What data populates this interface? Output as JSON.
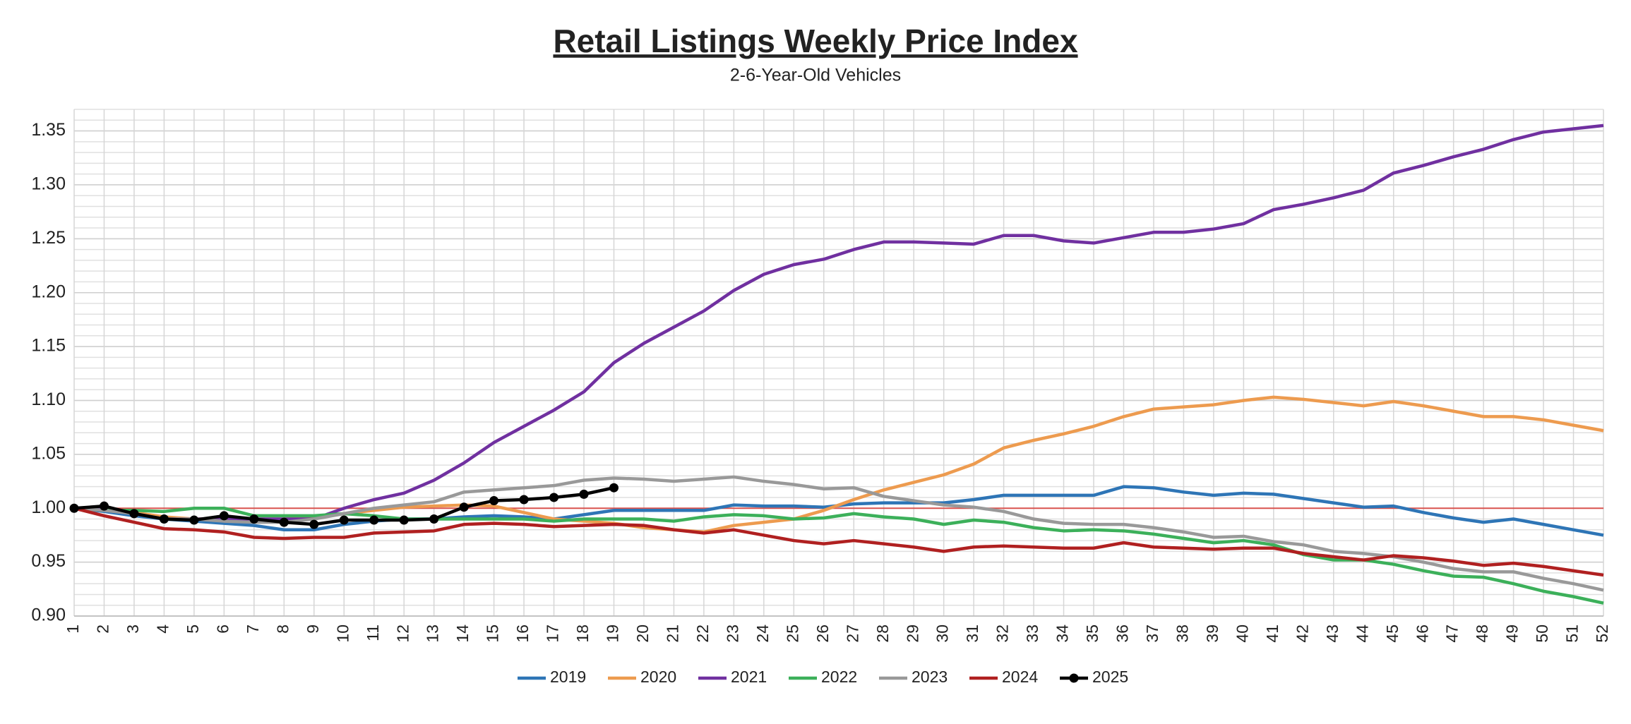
{
  "chart_data": {
    "type": "line",
    "title": "Retail Listings Weekly Price Index",
    "subtitle": "2-6-Year-Old Vehicles",
    "x": [
      1,
      2,
      3,
      4,
      5,
      6,
      7,
      8,
      9,
      10,
      11,
      12,
      13,
      14,
      15,
      16,
      17,
      18,
      19,
      20,
      21,
      22,
      23,
      24,
      25,
      26,
      27,
      28,
      29,
      30,
      31,
      32,
      33,
      34,
      35,
      36,
      37,
      38,
      39,
      40,
      41,
      42,
      43,
      44,
      45,
      46,
      47,
      48,
      49,
      50,
      51,
      52
    ],
    "xlim": [
      1,
      52
    ],
    "xticks": [
      1,
      2,
      3,
      4,
      5,
      6,
      7,
      8,
      9,
      10,
      11,
      12,
      13,
      14,
      15,
      16,
      17,
      18,
      19,
      20,
      21,
      22,
      23,
      24,
      25,
      26,
      27,
      28,
      29,
      30,
      31,
      32,
      33,
      34,
      35,
      36,
      37,
      38,
      39,
      40,
      41,
      42,
      43,
      44,
      45,
      46,
      47,
      48,
      49,
      50,
      51,
      52
    ],
    "ylim": [
      0.9,
      1.37
    ],
    "yticks": [
      {
        "value": 0.9,
        "label": "0.90"
      },
      0.95,
      {
        "value": 1,
        "label": "1.00"
      },
      1.05,
      {
        "value": 1.1,
        "label": "1.10"
      },
      1.15,
      {
        "value": 1.2,
        "label": "1.20"
      },
      1.25,
      {
        "value": 1.3,
        "label": "1.30"
      },
      1.35
    ],
    "grid": true,
    "minor_grid_step": 0.01,
    "reference_line": {
      "value": 1,
      "color": "#d9534f"
    },
    "legend": "bottom",
    "series": [
      {
        "name": "2019",
        "color": "#2e75b6",
        "values": [
          1.0,
          0.997,
          0.993,
          0.99,
          0.988,
          0.986,
          0.984,
          0.98,
          0.98,
          0.985,
          0.988,
          0.99,
          0.99,
          0.992,
          0.993,
          0.992,
          0.99,
          0.994,
          0.998,
          0.998,
          0.998,
          0.998,
          1.003,
          1.002,
          1.002,
          1.001,
          1.004,
          1.005,
          1.005,
          1.005,
          1.008,
          1.012,
          1.012,
          1.012,
          1.012,
          1.02,
          1.019,
          1.015,
          1.012,
          1.014,
          1.013,
          1.009,
          1.005,
          1.001,
          1.002,
          0.996,
          0.991,
          0.987,
          0.99,
          0.985,
          0.98,
          0.975
        ]
      },
      {
        "name": "2020",
        "color": "#ed9b4f",
        "values": [
          1.0,
          0.998,
          0.996,
          0.992,
          0.99,
          0.99,
          0.99,
          0.99,
          0.992,
          0.995,
          0.998,
          1.001,
          1.002,
          1.003,
          1.002,
          0.996,
          0.99,
          0.988,
          0.986,
          0.982,
          0.98,
          0.978,
          0.984,
          0.987,
          0.99,
          0.998,
          1.008,
          1.017,
          1.024,
          1.031,
          1.041,
          1.056,
          1.063,
          1.069,
          1.076,
          1.085,
          1.092,
          1.094,
          1.096,
          1.1,
          1.103,
          1.101,
          1.098,
          1.095,
          1.099,
          1.095,
          1.09,
          1.085,
          1.085,
          1.082,
          1.077,
          1.072
        ]
      },
      {
        "name": "2021",
        "color": "#7030a0",
        "values": [
          1.0,
          1.0,
          0.995,
          0.99,
          0.99,
          0.99,
          0.99,
          0.99,
          0.99,
          1.0,
          1.008,
          1.014,
          1.026,
          1.042,
          1.061,
          1.076,
          1.091,
          1.108,
          1.135,
          1.153,
          1.168,
          1.183,
          1.202,
          1.217,
          1.226,
          1.231,
          1.24,
          1.247,
          1.247,
          1.246,
          1.245,
          1.253,
          1.253,
          1.248,
          1.246,
          1.251,
          1.256,
          1.256,
          1.259,
          1.264,
          1.277,
          1.282,
          1.288,
          1.295,
          1.311,
          1.318,
          1.326,
          1.333,
          1.342,
          1.349,
          1.352,
          1.355
        ]
      },
      {
        "name": "2022",
        "color": "#3cb05a",
        "values": [
          1.0,
          0.998,
          0.998,
          0.997,
          1.0,
          1.0,
          0.993,
          0.993,
          0.993,
          0.995,
          0.993,
          0.99,
          0.99,
          0.99,
          0.99,
          0.99,
          0.988,
          0.99,
          0.99,
          0.99,
          0.988,
          0.992,
          0.994,
          0.993,
          0.99,
          0.991,
          0.995,
          0.992,
          0.99,
          0.985,
          0.989,
          0.987,
          0.982,
          0.979,
          0.98,
          0.979,
          0.976,
          0.972,
          0.968,
          0.97,
          0.966,
          0.957,
          0.952,
          0.952,
          0.948,
          0.942,
          0.937,
          0.936,
          0.93,
          0.923,
          0.918,
          0.912
        ]
      },
      {
        "name": "2023",
        "color": "#999999",
        "values": [
          1.0,
          0.998,
          0.995,
          0.99,
          0.99,
          0.988,
          0.987,
          0.987,
          0.99,
          0.995,
          1.0,
          1.003,
          1.006,
          1.015,
          1.017,
          1.019,
          1.021,
          1.026,
          1.028,
          1.027,
          1.025,
          1.027,
          1.029,
          1.025,
          1.022,
          1.018,
          1.019,
          1.011,
          1.007,
          1.003,
          1.001,
          0.997,
          0.99,
          0.986,
          0.985,
          0.985,
          0.982,
          0.978,
          0.973,
          0.974,
          0.969,
          0.966,
          0.96,
          0.958,
          0.955,
          0.95,
          0.944,
          0.941,
          0.941,
          0.935,
          0.93,
          0.924
        ]
      },
      {
        "name": "2024",
        "color": "#b02020",
        "values": [
          1.0,
          0.993,
          0.987,
          0.981,
          0.98,
          0.978,
          0.973,
          0.972,
          0.973,
          0.973,
          0.977,
          0.978,
          0.979,
          0.985,
          0.986,
          0.985,
          0.983,
          0.984,
          0.985,
          0.984,
          0.98,
          0.977,
          0.98,
          0.975,
          0.97,
          0.967,
          0.97,
          0.967,
          0.964,
          0.96,
          0.964,
          0.965,
          0.964,
          0.963,
          0.963,
          0.968,
          0.964,
          0.963,
          0.962,
          0.963,
          0.963,
          0.958,
          0.955,
          0.952,
          0.956,
          0.954,
          0.951,
          0.947,
          0.949,
          0.946,
          0.942,
          0.938
        ]
      },
      {
        "name": "2025",
        "color": "#000000",
        "marker": true,
        "values": [
          1.0,
          1.002,
          0.995,
          0.99,
          0.989,
          0.993,
          0.99,
          0.987,
          0.985,
          0.989,
          0.989,
          0.989,
          0.99,
          1.001,
          1.007,
          1.008,
          1.01,
          1.013,
          1.019,
          null,
          null,
          null,
          null,
          null,
          null,
          null,
          null,
          null,
          null,
          null,
          null,
          null,
          null,
          null,
          null,
          null,
          null,
          null,
          null,
          null,
          null,
          null,
          null,
          null,
          null,
          null,
          null,
          null,
          null,
          null,
          null,
          null
        ]
      }
    ]
  }
}
